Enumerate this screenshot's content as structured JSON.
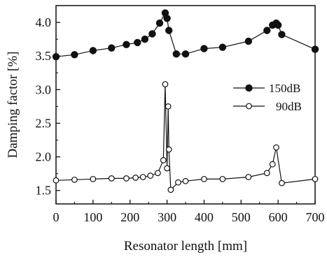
{
  "chart_data": {
    "type": "line",
    "title": "",
    "xlabel": "Resonator length [mm]",
    "ylabel": "Damping factor [%]",
    "xlim": [
      0,
      700
    ],
    "ylim": [
      1.3,
      4.25
    ],
    "x_ticks": [
      0,
      100,
      200,
      300,
      400,
      500,
      600,
      700
    ],
    "y_ticks": [
      1.5,
      2.0,
      2.5,
      3.0,
      3.5,
      4.0
    ],
    "y_tick_labels": [
      "1.5",
      "2.0",
      "2.5",
      "3.0",
      "3.5",
      "4.0"
    ],
    "grid": false,
    "legend_position": "right-middle",
    "series": [
      {
        "name": "150dB",
        "marker": "filled-circle",
        "color": "#111111",
        "points": [
          [
            0,
            3.49
          ],
          [
            50,
            3.52
          ],
          [
            100,
            3.58
          ],
          [
            150,
            3.62
          ],
          [
            190,
            3.67
          ],
          [
            220,
            3.7
          ],
          [
            240,
            3.75
          ],
          [
            260,
            3.83
          ],
          [
            280,
            3.99
          ],
          [
            295,
            4.14
          ],
          [
            300,
            4.06
          ],
          [
            305,
            3.88
          ],
          [
            325,
            3.53
          ],
          [
            350,
            3.53
          ],
          [
            400,
            3.61
          ],
          [
            450,
            3.63
          ],
          [
            520,
            3.72
          ],
          [
            570,
            3.88
          ],
          [
            585,
            3.96
          ],
          [
            595,
            3.99
          ],
          [
            600,
            3.96
          ],
          [
            610,
            3.82
          ],
          [
            700,
            3.6
          ]
        ]
      },
      {
        "name": "90dB",
        "marker": "open-circle",
        "color": "#111111",
        "points": [
          [
            0,
            1.65
          ],
          [
            50,
            1.66
          ],
          [
            100,
            1.67
          ],
          [
            150,
            1.68
          ],
          [
            190,
            1.68
          ],
          [
            215,
            1.69
          ],
          [
            235,
            1.7
          ],
          [
            255,
            1.72
          ],
          [
            275,
            1.76
          ],
          [
            290,
            1.95
          ],
          [
            295,
            3.08
          ],
          [
            300,
            1.83
          ],
          [
            303,
            2.75
          ],
          [
            305,
            2.11
          ],
          [
            310,
            1.51
          ],
          [
            330,
            1.62
          ],
          [
            350,
            1.64
          ],
          [
            400,
            1.67
          ],
          [
            450,
            1.67
          ],
          [
            520,
            1.7
          ],
          [
            570,
            1.76
          ],
          [
            585,
            1.89
          ],
          [
            595,
            2.14
          ],
          [
            610,
            1.61
          ],
          [
            700,
            1.67
          ]
        ]
      }
    ]
  }
}
